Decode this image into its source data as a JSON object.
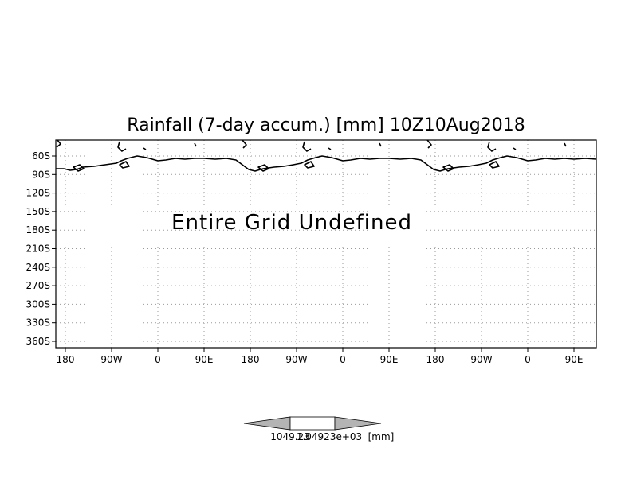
{
  "map": {
    "title": "Rainfall (7-day accum.) [mm] 10Z10Aug2018",
    "undefined_message": "Entire Grid Undefined",
    "lat_labels": [
      "60S",
      "90S",
      "120S",
      "150S",
      "180S",
      "210S",
      "240S",
      "270S",
      "300S",
      "330S",
      "360S"
    ],
    "lon_labels": [
      "180",
      "90W",
      "0",
      "90E",
      "180",
      "90W",
      "0",
      "90E",
      "180",
      "90W",
      "0",
      "90E"
    ],
    "grid": "dotted",
    "colors": {
      "frame": "#000000",
      "grid": "#9a9a9a",
      "colorbar_ends": "#b4b4b4",
      "colorbar_center": "#ffffff"
    }
  },
  "colorbar": {
    "left_label": "1049.23",
    "overlap_label": "1.04923e+03",
    "unit_label": "[mm]"
  }
}
